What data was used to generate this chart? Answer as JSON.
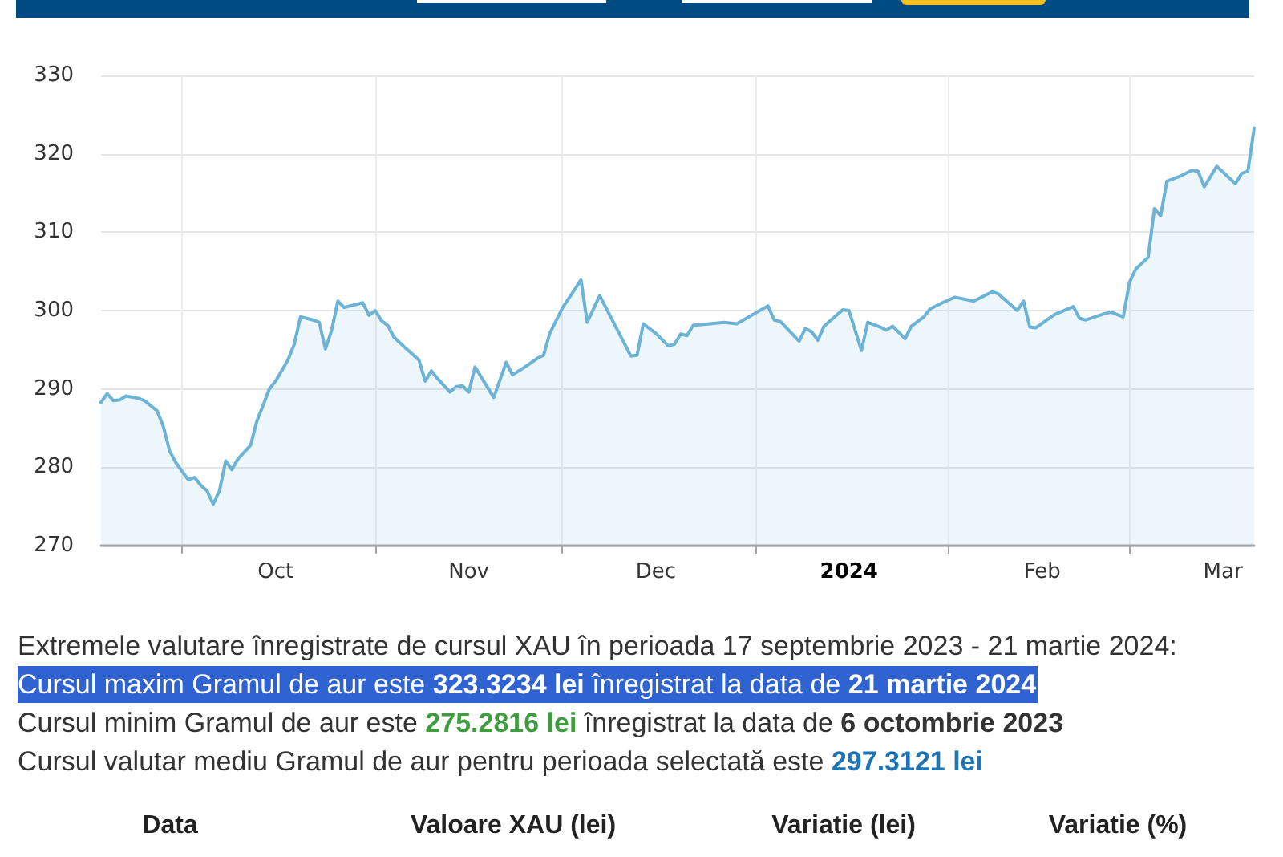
{
  "chart_data": {
    "type": "area",
    "color": "#6cb3d5",
    "marker": "none",
    "grid": true,
    "xlim": [
      "2023-09-18",
      "2024-03-21"
    ],
    "ylim": [
      270,
      330
    ],
    "yticks": [
      270,
      280,
      290,
      300,
      310,
      320,
      330
    ],
    "xticks": [
      {
        "value": "2023-10-01",
        "label": null
      },
      {
        "value": "2023-10-16",
        "label": "Oct"
      },
      {
        "value": "2023-11-01",
        "label": null
      },
      {
        "value": "2023-11-16",
        "label": "Nov"
      },
      {
        "value": "2023-12-01",
        "label": null
      },
      {
        "value": "2023-12-16",
        "label": "Dec"
      },
      {
        "value": "2024-01-01",
        "label": null
      },
      {
        "value": "2024-01-16",
        "label": "2024"
      },
      {
        "value": "2024-02-01",
        "label": null
      },
      {
        "value": "2024-02-16",
        "label": "Feb"
      },
      {
        "value": "2024-03-01",
        "label": null
      },
      {
        "value": "2024-03-16",
        "label": "Mar"
      }
    ],
    "x": [
      "2023-09-18",
      "2023-09-19",
      "2023-09-20",
      "2023-09-21",
      "2023-09-22",
      "2023-09-24",
      "2023-09-25",
      "2023-09-27",
      "2023-09-28",
      "2023-09-29",
      "2023-09-30",
      "2023-10-02",
      "2023-10-03",
      "2023-10-04",
      "2023-10-05",
      "2023-10-06",
      "2023-10-07",
      "2023-10-08",
      "2023-10-09",
      "2023-10-10",
      "2023-10-12",
      "2023-10-13",
      "2023-10-14",
      "2023-10-15",
      "2023-10-16",
      "2023-10-18",
      "2023-10-19",
      "2023-10-20",
      "2023-10-22",
      "2023-10-23",
      "2023-10-24",
      "2023-10-25",
      "2023-10-26",
      "2023-10-27",
      "2023-10-30",
      "2023-10-31",
      "2023-11-01",
      "2023-11-02",
      "2023-11-03",
      "2023-11-04",
      "2023-11-06",
      "2023-11-08",
      "2023-11-09",
      "2023-11-10",
      "2023-11-11",
      "2023-11-13",
      "2023-11-14",
      "2023-11-15",
      "2023-11-16",
      "2023-11-17",
      "2023-11-20",
      "2023-11-22",
      "2023-11-23",
      "2023-11-25",
      "2023-11-27",
      "2023-11-28",
      "2023-11-29",
      "2023-12-01",
      "2023-12-04",
      "2023-12-05",
      "2023-12-07",
      "2023-12-12",
      "2023-12-13",
      "2023-12-14",
      "2023-12-16",
      "2023-12-18",
      "2023-12-19",
      "2023-12-20",
      "2023-12-21",
      "2023-12-22",
      "2023-12-27",
      "2023-12-29",
      "2024-01-03",
      "2024-01-04",
      "2024-01-05",
      "2024-01-08",
      "2024-01-09",
      "2024-01-10",
      "2024-01-11",
      "2024-01-12",
      "2024-01-15",
      "2024-01-16",
      "2024-01-18",
      "2024-01-19",
      "2024-01-21",
      "2024-01-22",
      "2024-01-23",
      "2024-01-25",
      "2024-01-26",
      "2024-01-28",
      "2024-01-29",
      "2024-01-31",
      "2024-02-02",
      "2024-02-05",
      "2024-02-08",
      "2024-02-09",
      "2024-02-12",
      "2024-02-13",
      "2024-02-14",
      "2024-02-15",
      "2024-02-18",
      "2024-02-21",
      "2024-02-22",
      "2024-02-23",
      "2024-02-26",
      "2024-02-27",
      "2024-02-29",
      "2024-03-01",
      "2024-03-02",
      "2024-03-04",
      "2024-03-05",
      "2024-03-06",
      "2024-03-07",
      "2024-03-09",
      "2024-03-11",
      "2024-03-12",
      "2024-03-13",
      "2024-03-15",
      "2024-03-18",
      "2024-03-19",
      "2024-03-20",
      "2024-03-21"
    ],
    "values": [
      288.3,
      289.4,
      288.5,
      288.6,
      289.1,
      288.8,
      288.5,
      287.2,
      285.2,
      282.1,
      280.6,
      278.4,
      278.7,
      277.7,
      277.0,
      275.3,
      277.0,
      280.8,
      279.7,
      281.1,
      282.8,
      285.9,
      287.9,
      290.0,
      291.0,
      293.7,
      295.7,
      299.2,
      298.8,
      298.5,
      295.1,
      297.5,
      301.2,
      300.4,
      301.0,
      299.4,
      300.0,
      298.7,
      298.1,
      296.6,
      295.1,
      293.7,
      291.0,
      292.3,
      291.3,
      289.6,
      290.3,
      290.4,
      289.6,
      292.8,
      288.9,
      293.4,
      291.8,
      292.8,
      293.9,
      294.3,
      297.1,
      300.3,
      303.9,
      298.5,
      301.9,
      294.2,
      294.3,
      298.3,
      297.1,
      295.5,
      295.7,
      297.0,
      296.8,
      298.1,
      298.5,
      298.3,
      300.6,
      298.8,
      298.6,
      296.1,
      297.7,
      297.3,
      296.2,
      298.0,
      300.1,
      300.0,
      294.9,
      298.5,
      297.9,
      297.5,
      298.0,
      296.4,
      298.0,
      299.2,
      300.2,
      301.0,
      301.7,
      301.2,
      302.4,
      302.1,
      300.0,
      301.2,
      297.9,
      297.8,
      299.5,
      300.5,
      299.0,
      298.8,
      299.6,
      299.8,
      299.2,
      303.6,
      305.3,
      306.8,
      313.0,
      312.1,
      316.5,
      317.1,
      317.9,
      317.8,
      315.8,
      318.4,
      316.2,
      317.5,
      317.8,
      323.3
    ],
    "annotations": [
      "Extremele valutare înregistrate de cursul XAU în perioada 17 septembrie 2023 - 21 martie 2024:",
      "Cursul maxim Gramul de aur este",
      "323.3234 lei",
      "înregistrat la data de",
      "21 martie 2024",
      "Cursul minim Gramul de aur este",
      "275.2816 lei",
      "înregistrat la data de",
      "6 octombrie 2023",
      "Cursul valutar mediu Gramul de aur pentru perioada selectată este",
      "297.3121 lei",
      "Data",
      "Valoare XAU (lei)",
      "Variatie (lei)",
      "Variatie (%)"
    ]
  }
}
